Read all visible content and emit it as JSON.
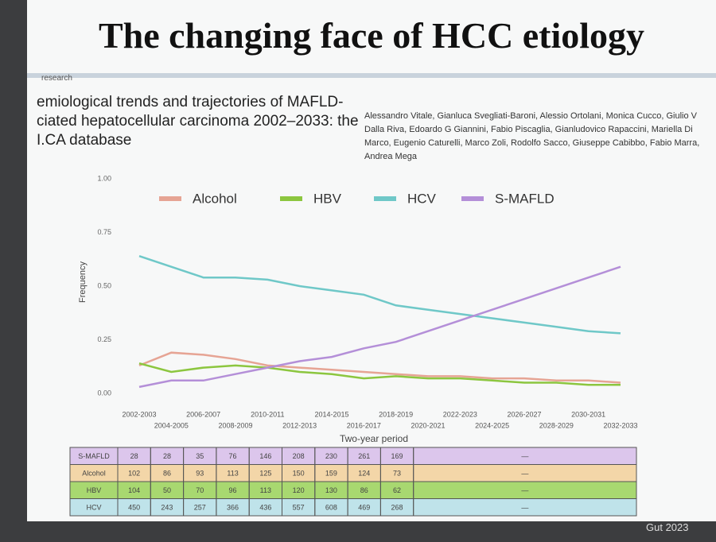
{
  "slide_title": "The changing face of HCC etiology",
  "section_label": "research",
  "paper_title_lines": [
    "emiological trends and trajectories of MAFLD-",
    "ciated hepatocellular carcinoma 2002–2033: the",
    "I.CA database"
  ],
  "authors": "Alessandro Vitale, Gianluca Svegliati-Baroni, Alessio Ortolani, Monica Cucco, Giulio V Dalla Riva, Edoardo G Giannini, Fabio Piscaglia, Gianludovico Rapaccini, Mariella Di Marco, Eugenio Caturelli, Marco Zoli, Rodolfo Sacco, Giuseppe Cabibbo, Fabio Marra, Andrea Mega",
  "footer": "Gut 2023",
  "chart_data": {
    "type": "line",
    "y_label": "Frequency",
    "x_label": "Two-year period",
    "categories": [
      "2002-2003",
      "2004-2005",
      "2006-2007",
      "2008-2009",
      "2010-2011",
      "2012-2013",
      "2014-2015",
      "2016-2017",
      "2018-2019",
      "2020-2021",
      "2022-2023",
      "2024-2025",
      "2026-2027",
      "2028-2029",
      "2030-2031",
      "2032-2033"
    ],
    "ylim": [
      0,
      1
    ],
    "yticks": [
      {
        "value": 0,
        "label": "0.00"
      },
      {
        "value": 0.25,
        "label": "0.25"
      },
      {
        "value": 0.5,
        "label": "0.50"
      },
      {
        "value": 0.75,
        "label": "0.75"
      },
      {
        "value": 1,
        "label": "1.00"
      }
    ],
    "series": [
      {
        "name": "Alcohol",
        "color": "#e6a494",
        "values": [
          0.13,
          0.19,
          0.18,
          0.16,
          0.13,
          0.12,
          0.11,
          0.1,
          0.09,
          0.08,
          0.08,
          0.07,
          0.07,
          0.06,
          0.06,
          0.05
        ]
      },
      {
        "name": "HBV",
        "color": "#8cc63f",
        "values": [
          0.14,
          0.1,
          0.12,
          0.13,
          0.12,
          0.1,
          0.09,
          0.07,
          0.08,
          0.07,
          0.07,
          0.06,
          0.05,
          0.05,
          0.04,
          0.04
        ]
      },
      {
        "name": "HCV",
        "color": "#6fc8c8",
        "values": [
          0.64,
          0.59,
          0.54,
          0.54,
          0.53,
          0.5,
          0.48,
          0.46,
          0.41,
          0.39,
          0.37,
          0.35,
          0.33,
          0.31,
          0.29,
          0.28
        ]
      },
      {
        "name": "S-MAFLD",
        "color": "#b48fd8",
        "values": [
          0.03,
          0.06,
          0.06,
          0.09,
          0.12,
          0.15,
          0.17,
          0.21,
          0.24,
          0.29,
          0.34,
          0.39,
          0.44,
          0.49,
          0.54,
          0.59
        ]
      }
    ]
  },
  "table": {
    "row_colors": [
      "#dcc6ec",
      "#f3d6a8",
      "#a8d870",
      "#bfe3ea"
    ],
    "rows": [
      [
        "S-MAFLD",
        28,
        28,
        35,
        76,
        146,
        208,
        230,
        261,
        169,
        "—"
      ],
      [
        "Alcohol",
        102,
        86,
        93,
        113,
        125,
        150,
        159,
        124,
        73,
        "—"
      ],
      [
        "HBV",
        104,
        50,
        70,
        96,
        113,
        120,
        130,
        86,
        62,
        "—"
      ],
      [
        "HCV",
        450,
        243,
        257,
        366,
        436,
        557,
        608,
        469,
        268,
        "—"
      ]
    ]
  }
}
